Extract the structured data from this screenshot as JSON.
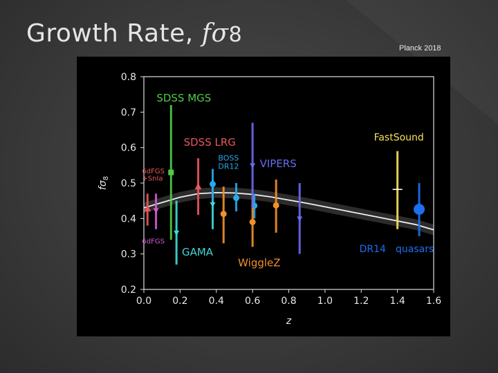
{
  "slide": {
    "title_prefix": "Growth Rate, ",
    "title_symbol": "f",
    "title_sigma": "σ",
    "title_sub": "8",
    "credit": "Planck 2018"
  },
  "chart_data": {
    "type": "scatter",
    "xlabel": "z",
    "ylabel_symbol": "f",
    "ylabel_sigma": "σ",
    "ylabel_sub": "8",
    "xlim": [
      0.0,
      1.6
    ],
    "ylim": [
      0.2,
      0.8
    ],
    "x_ticks": [
      "0.0",
      "0.2",
      "0.4",
      "0.6",
      "0.8",
      "1.0",
      "1.2",
      "1.4",
      "1.6"
    ],
    "y_ticks": [
      "0.2",
      "0.3",
      "0.4",
      "0.5",
      "0.6",
      "0.7",
      "0.8"
    ],
    "model_curve": {
      "band_halfwidth": 0.015,
      "points": [
        [
          0,
          0.43
        ],
        [
          0.1,
          0.445
        ],
        [
          0.2,
          0.46
        ],
        [
          0.3,
          0.47
        ],
        [
          0.4,
          0.473
        ],
        [
          0.5,
          0.472
        ],
        [
          0.6,
          0.468
        ],
        [
          0.7,
          0.461
        ],
        [
          0.8,
          0.452
        ],
        [
          0.9,
          0.443
        ],
        [
          1.0,
          0.433
        ],
        [
          1.1,
          0.423
        ],
        [
          1.2,
          0.413
        ],
        [
          1.3,
          0.403
        ],
        [
          1.4,
          0.393
        ],
        [
          1.5,
          0.383
        ],
        [
          1.6,
          0.368
        ]
      ]
    },
    "series": [
      {
        "name": "6dFGS + SnIa",
        "color": "#e8565c",
        "marker": "triangle-up",
        "points": [
          {
            "x": 0.02,
            "y": 0.428,
            "lo": 0.38,
            "hi": 0.47
          }
        ]
      },
      {
        "name": "6dFGS",
        "color": "#d45ad4",
        "marker": "triangle-down",
        "points": [
          {
            "x": 0.067,
            "y": 0.423,
            "lo": 0.37,
            "hi": 0.47
          }
        ]
      },
      {
        "name": "SDSS MGS",
        "color": "#52c94a",
        "marker": "square",
        "points": [
          {
            "x": 0.15,
            "y": 0.53,
            "lo": 0.34,
            "hi": 0.72
          }
        ]
      },
      {
        "name": "GAMA",
        "color": "#3fd8d8",
        "marker": "triangle-down",
        "points": [
          {
            "x": 0.18,
            "y": 0.36,
            "lo": 0.27,
            "hi": 0.45
          },
          {
            "x": 0.38,
            "y": 0.44,
            "lo": 0.37,
            "hi": 0.51
          }
        ]
      },
      {
        "name": "SDSS LRG",
        "color": "#e8565c",
        "marker": "triangle-up",
        "points": [
          {
            "x": 0.3,
            "y": 0.49,
            "lo": 0.41,
            "hi": 0.57
          }
        ]
      },
      {
        "name": "BOSS DR12",
        "color": "#2aa8ea",
        "marker": "circle",
        "points": [
          {
            "x": 0.38,
            "y": 0.497,
            "lo": 0.45,
            "hi": 0.54
          },
          {
            "x": 0.51,
            "y": 0.458,
            "lo": 0.42,
            "hi": 0.5
          },
          {
            "x": 0.61,
            "y": 0.436,
            "lo": 0.4,
            "hi": 0.47
          }
        ]
      },
      {
        "name": "WiggleZ",
        "color": "#f0902a",
        "marker": "circle",
        "points": [
          {
            "x": 0.44,
            "y": 0.413,
            "lo": 0.33,
            "hi": 0.49
          },
          {
            "x": 0.6,
            "y": 0.39,
            "lo": 0.32,
            "hi": 0.46
          },
          {
            "x": 0.73,
            "y": 0.437,
            "lo": 0.36,
            "hi": 0.51
          }
        ]
      },
      {
        "name": "VIPERS",
        "color": "#6a6af0",
        "marker": "triangle-down",
        "points": [
          {
            "x": 0.6,
            "y": 0.55,
            "lo": 0.43,
            "hi": 0.67
          },
          {
            "x": 0.86,
            "y": 0.4,
            "lo": 0.3,
            "hi": 0.5
          }
        ]
      },
      {
        "name": "FastSound",
        "color": "#f5e25a",
        "marker": "cross",
        "points": [
          {
            "x": 1.4,
            "y": 0.482,
            "lo": 0.37,
            "hi": 0.59
          }
        ]
      },
      {
        "name": "DR14 quasars",
        "color": "#1e6ef0",
        "marker": "circle",
        "points": [
          {
            "x": 1.52,
            "y": 0.426,
            "lo": 0.35,
            "hi": 0.5
          }
        ]
      }
    ],
    "annotations": [
      {
        "text": "SDSS MGS",
        "color": "#52c94a",
        "x": 0.07,
        "y": 0.73,
        "size": 15
      },
      {
        "text": "SDSS LRG",
        "color": "#e8565c",
        "x": 0.22,
        "y": 0.605,
        "size": 15
      },
      {
        "text": "BOSS",
        "color": "#2aa8ea",
        "x": 0.41,
        "y": 0.563,
        "size": 11
      },
      {
        "text": "DR12",
        "color": "#2aa8ea",
        "x": 0.41,
        "y": 0.54,
        "size": 11
      },
      {
        "text": "VIPERS",
        "color": "#6a6af0",
        "x": 0.64,
        "y": 0.545,
        "size": 15
      },
      {
        "text": "6dFGS",
        "color": "#e8565c",
        "x": -0.01,
        "y": 0.527,
        "size": 10
      },
      {
        "text": "+SnIa",
        "color": "#e8565c",
        "x": -0.01,
        "y": 0.507,
        "size": 10
      },
      {
        "text": "6dFGS",
        "color": "#d45ad4",
        "x": -0.01,
        "y": 0.33,
        "size": 10
      },
      {
        "text": "GAMA",
        "color": "#3fd8d8",
        "x": 0.21,
        "y": 0.295,
        "size": 15
      },
      {
        "text": "WiggleZ",
        "color": "#f0902a",
        "x": 0.52,
        "y": 0.265,
        "size": 15
      },
      {
        "text": "FastSound",
        "color": "#f5e25a",
        "x": 1.27,
        "y": 0.62,
        "size": 14
      },
      {
        "text": "DR14",
        "color": "#1e6ef0",
        "x": 1.19,
        "y": 0.305,
        "size": 14
      },
      {
        "text": "quasars",
        "color": "#1e6ef0",
        "x": 1.39,
        "y": 0.305,
        "size": 14
      }
    ]
  }
}
